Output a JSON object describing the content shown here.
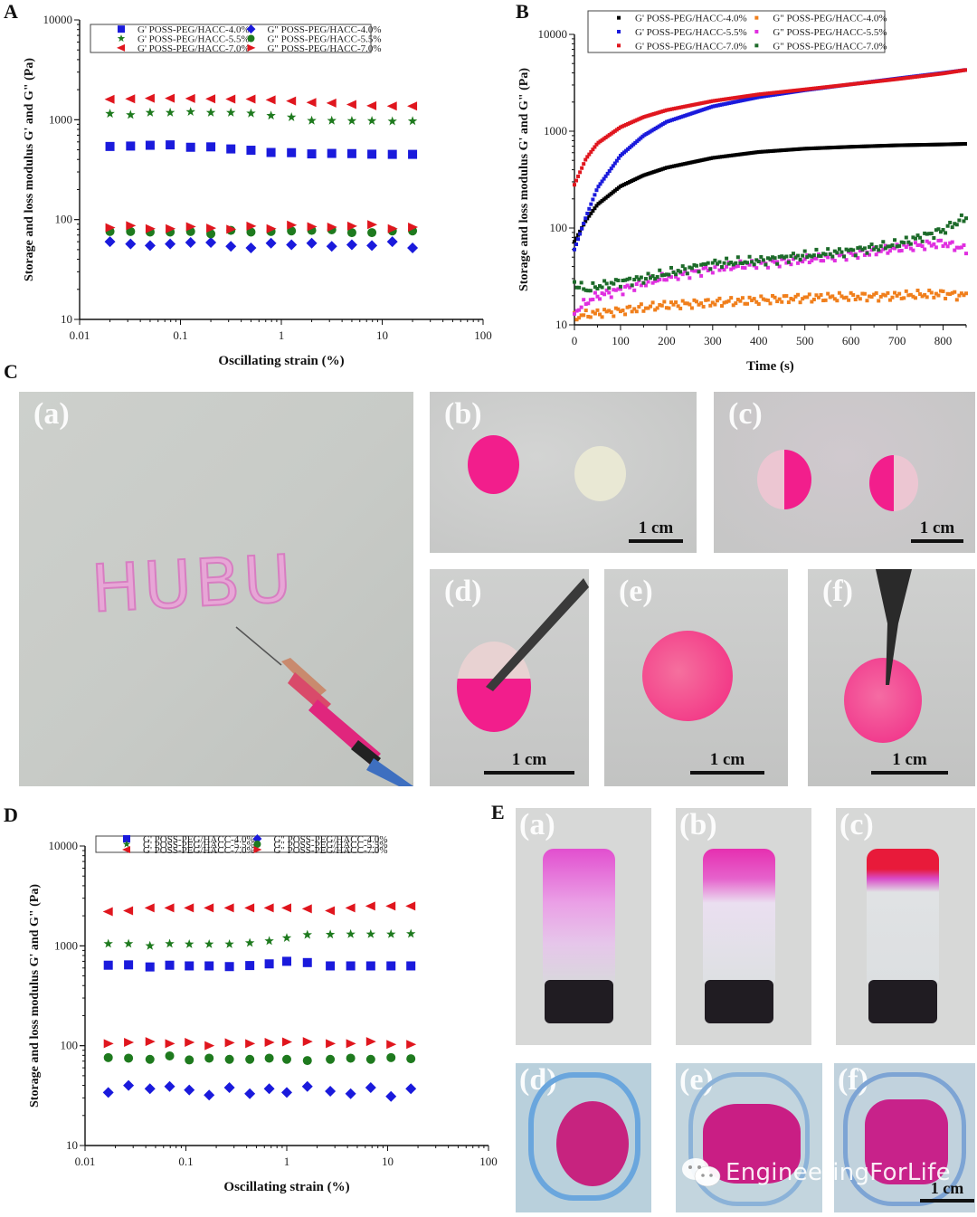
{
  "panels": {
    "A": {
      "letter": "A"
    },
    "B": {
      "letter": "B"
    },
    "C": {
      "letter": "C",
      "photos": [
        {
          "label": "(a)",
          "text_on_paper": "HUBU"
        },
        {
          "label": "(b)",
          "scale": "1 cm"
        },
        {
          "label": "(c)",
          "scale": "1 cm"
        },
        {
          "label": "(d)",
          "scale": "1 cm"
        },
        {
          "label": "(e)",
          "scale": "1 cm"
        },
        {
          "label": "(f)",
          "scale": "1 cm"
        }
      ]
    },
    "D": {
      "letter": "D"
    },
    "E": {
      "letter": "E",
      "photos": [
        {
          "label": "(a)"
        },
        {
          "label": "(b)"
        },
        {
          "label": "(c)"
        },
        {
          "label": "(d)"
        },
        {
          "label": "(e)"
        },
        {
          "label": "(f)",
          "scale": "1 cm"
        }
      ]
    }
  },
  "watermark": {
    "text": "EngineeringForLife",
    "icon": "wechat-icon"
  },
  "colors": {
    "blue": "#1a1adc",
    "green": "#1e7a1e",
    "red": "#e0161e",
    "black": "#000000",
    "orange": "#f07f1c",
    "magenta": "#e02fe0",
    "dark_green": "#1d6b2a"
  },
  "chart_data": [
    {
      "id": "A",
      "type": "scatter",
      "title": "",
      "xlabel": "Oscillating strain (%)",
      "ylabel": "Storage and loss modulus G' and G\" (Pa)",
      "xscale": "log",
      "yscale": "log",
      "xlim": [
        0.01,
        100
      ],
      "ylim": [
        10,
        10000
      ],
      "xticks": [
        "0.01",
        "0.1",
        "1",
        "10",
        "100"
      ],
      "yticks": [
        "10",
        "100",
        "1000",
        "10000"
      ],
      "legend_position": "top",
      "x": [
        0.02,
        0.032,
        0.05,
        0.079,
        0.126,
        0.2,
        0.316,
        0.5,
        0.79,
        1.26,
        2.0,
        3.16,
        5.0,
        7.9,
        12.6,
        20.0
      ],
      "series": [
        {
          "name": "G' POSS-PEG/HACC-4.0%",
          "marker": "square",
          "color": "#1a1adc",
          "values": [
            540,
            545,
            555,
            560,
            530,
            535,
            510,
            495,
            470,
            468,
            455,
            460,
            458,
            452,
            450,
            450
          ]
        },
        {
          "name": "G' POSS-PEG/HACC-5.5%",
          "marker": "star",
          "color": "#1e7a1e",
          "values": [
            1150,
            1120,
            1180,
            1180,
            1200,
            1180,
            1180,
            1160,
            1100,
            1060,
            980,
            980,
            975,
            975,
            965,
            970
          ]
        },
        {
          "name": "G' POSS-PEG/HACC-7.0%",
          "marker": "triangle-left",
          "color": "#e0161e",
          "values": [
            1600,
            1620,
            1640,
            1640,
            1630,
            1620,
            1610,
            1610,
            1580,
            1540,
            1490,
            1470,
            1420,
            1380,
            1370,
            1370
          ]
        },
        {
          "name": "G\" POSS-PEG/HACC-4.0%",
          "marker": "diamond",
          "color": "#1a1adc",
          "values": [
            60,
            57,
            55,
            57,
            59,
            59,
            54,
            52,
            58,
            56,
            58,
            54,
            56,
            55,
            60,
            52
          ]
        },
        {
          "name": "G\" POSS-PEG/HACC-5.5%",
          "marker": "circle",
          "color": "#1e7a1e",
          "values": [
            76,
            76,
            75,
            75,
            76,
            72,
            78,
            75,
            76,
            77,
            78,
            79,
            74,
            74,
            77,
            77
          ]
        },
        {
          "name": "G\" POSS-PEG/HACC-7.0%",
          "marker": "triangle-right",
          "color": "#e0161e",
          "values": [
            83,
            87,
            81,
            81,
            85,
            82,
            80,
            86,
            81,
            88,
            85,
            84,
            86,
            89,
            81,
            84
          ]
        }
      ]
    },
    {
      "id": "B",
      "type": "scatter",
      "title": "",
      "xlabel": "Time (s)",
      "ylabel": "Storage and loss modulus G' and G\" (Pa)",
      "xscale": "linear",
      "yscale": "log",
      "xlim": [
        0,
        850
      ],
      "ylim": [
        10,
        10000
      ],
      "xticks": [
        "0",
        "100",
        "200",
        "300",
        "400",
        "500",
        "600",
        "700",
        "800"
      ],
      "yticks": [
        "10",
        "100",
        "1000",
        "10000"
      ],
      "legend_position": "top",
      "x": [
        0,
        25,
        50,
        100,
        150,
        200,
        300,
        400,
        500,
        600,
        700,
        800,
        850
      ],
      "series": [
        {
          "name": "G' POSS-PEG/HACC-4.0%",
          "marker": "dot",
          "color": "#000000",
          "values": [
            72,
            120,
            175,
            270,
            350,
            420,
            530,
            610,
            660,
            690,
            715,
            730,
            740
          ]
        },
        {
          "name": "G' POSS-PEG/HACC-5.5%",
          "marker": "dot",
          "color": "#1a1adc",
          "values": [
            60,
            130,
            260,
            560,
            900,
            1250,
            1800,
            2250,
            2650,
            3050,
            3500,
            4000,
            4300
          ]
        },
        {
          "name": "G' POSS-PEG/HACC-7.0%",
          "marker": "dot",
          "color": "#e0161e",
          "values": [
            280,
            520,
            750,
            1100,
            1400,
            1650,
            2050,
            2400,
            2700,
            3050,
            3450,
            3950,
            4300
          ]
        },
        {
          "name": "G\" POSS-PEG/HACC-4.0%",
          "marker": "dot",
          "color": "#f07f1c",
          "values": [
            12,
            12.8,
            13.2,
            14,
            15,
            16,
            17,
            18,
            19,
            19.5,
            20,
            21,
            20
          ]
        },
        {
          "name": "G\" POSS-PEG/HACC-5.5%",
          "marker": "dot",
          "color": "#e02fe0",
          "values": [
            13.5,
            17,
            20,
            23,
            27,
            31,
            38,
            43,
            47,
            53,
            62,
            70,
            60
          ]
        },
        {
          "name": "G\" POSS-PEG/HACC-7.0%",
          "marker": "dot",
          "color": "#1d6b2a",
          "values": [
            27,
            23,
            25,
            28,
            30,
            34,
            43,
            46,
            52,
            58,
            68,
            95,
            130
          ]
        }
      ]
    },
    {
      "id": "D",
      "type": "scatter",
      "title": "",
      "xlabel": "Oscillating strain (%)",
      "ylabel": "Storage and loss modulus G' and G\" (Pa)",
      "xscale": "log",
      "yscale": "log",
      "xlim": [
        0.01,
        100
      ],
      "ylim": [
        10,
        10000
      ],
      "xticks": [
        "0.01",
        "0.1",
        "1",
        "10",
        "100"
      ],
      "yticks": [
        "10",
        "100",
        "1000",
        "10000"
      ],
      "legend_position": "top",
      "x": [
        0.017,
        0.027,
        0.044,
        0.069,
        0.108,
        0.17,
        0.27,
        0.43,
        0.67,
        1.0,
        1.6,
        2.7,
        4.3,
        6.8,
        10.8,
        17.0
      ],
      "series": [
        {
          "name": "G' POSS-PEG/HACC-4.0%",
          "marker": "square",
          "color": "#1a1adc",
          "values": [
            640,
            645,
            615,
            640,
            630,
            630,
            620,
            635,
            660,
            700,
            680,
            630,
            630,
            630,
            630,
            630
          ]
        },
        {
          "name": "G' POSS-PEG/HACC-5.5%",
          "marker": "star",
          "color": "#1e7a1e",
          "values": [
            1050,
            1050,
            1000,
            1050,
            1040,
            1040,
            1040,
            1070,
            1120,
            1200,
            1290,
            1300,
            1310,
            1310,
            1310,
            1320
          ]
        },
        {
          "name": "G' POSS-PEG/HACC-7.0%",
          "marker": "triangle-left",
          "color": "#e0161e",
          "values": [
            2200,
            2250,
            2400,
            2400,
            2400,
            2400,
            2400,
            2400,
            2400,
            2400,
            2350,
            2250,
            2400,
            2500,
            2500,
            2500
          ]
        },
        {
          "name": "G\" POSS-PEG/HACC-4.0%",
          "marker": "diamond",
          "color": "#1a1adc",
          "values": [
            34,
            40,
            37,
            39,
            36,
            32,
            38,
            33,
            37,
            34,
            39,
            35,
            33,
            38,
            31,
            37
          ]
        },
        {
          "name": "G\" POSS-PEG/HACC-5.5%",
          "marker": "circle",
          "color": "#1e7a1e",
          "values": [
            76,
            75,
            73,
            79,
            72,
            75,
            73,
            73,
            75,
            73,
            71,
            73,
            75,
            73,
            76,
            74
          ]
        },
        {
          "name": "G\" POSS-PEG/HACC-7.0%",
          "marker": "triangle-right",
          "color": "#e0161e",
          "values": [
            105,
            108,
            110,
            105,
            108,
            100,
            107,
            105,
            108,
            109,
            110,
            105,
            105,
            110,
            103,
            103
          ]
        }
      ]
    }
  ]
}
